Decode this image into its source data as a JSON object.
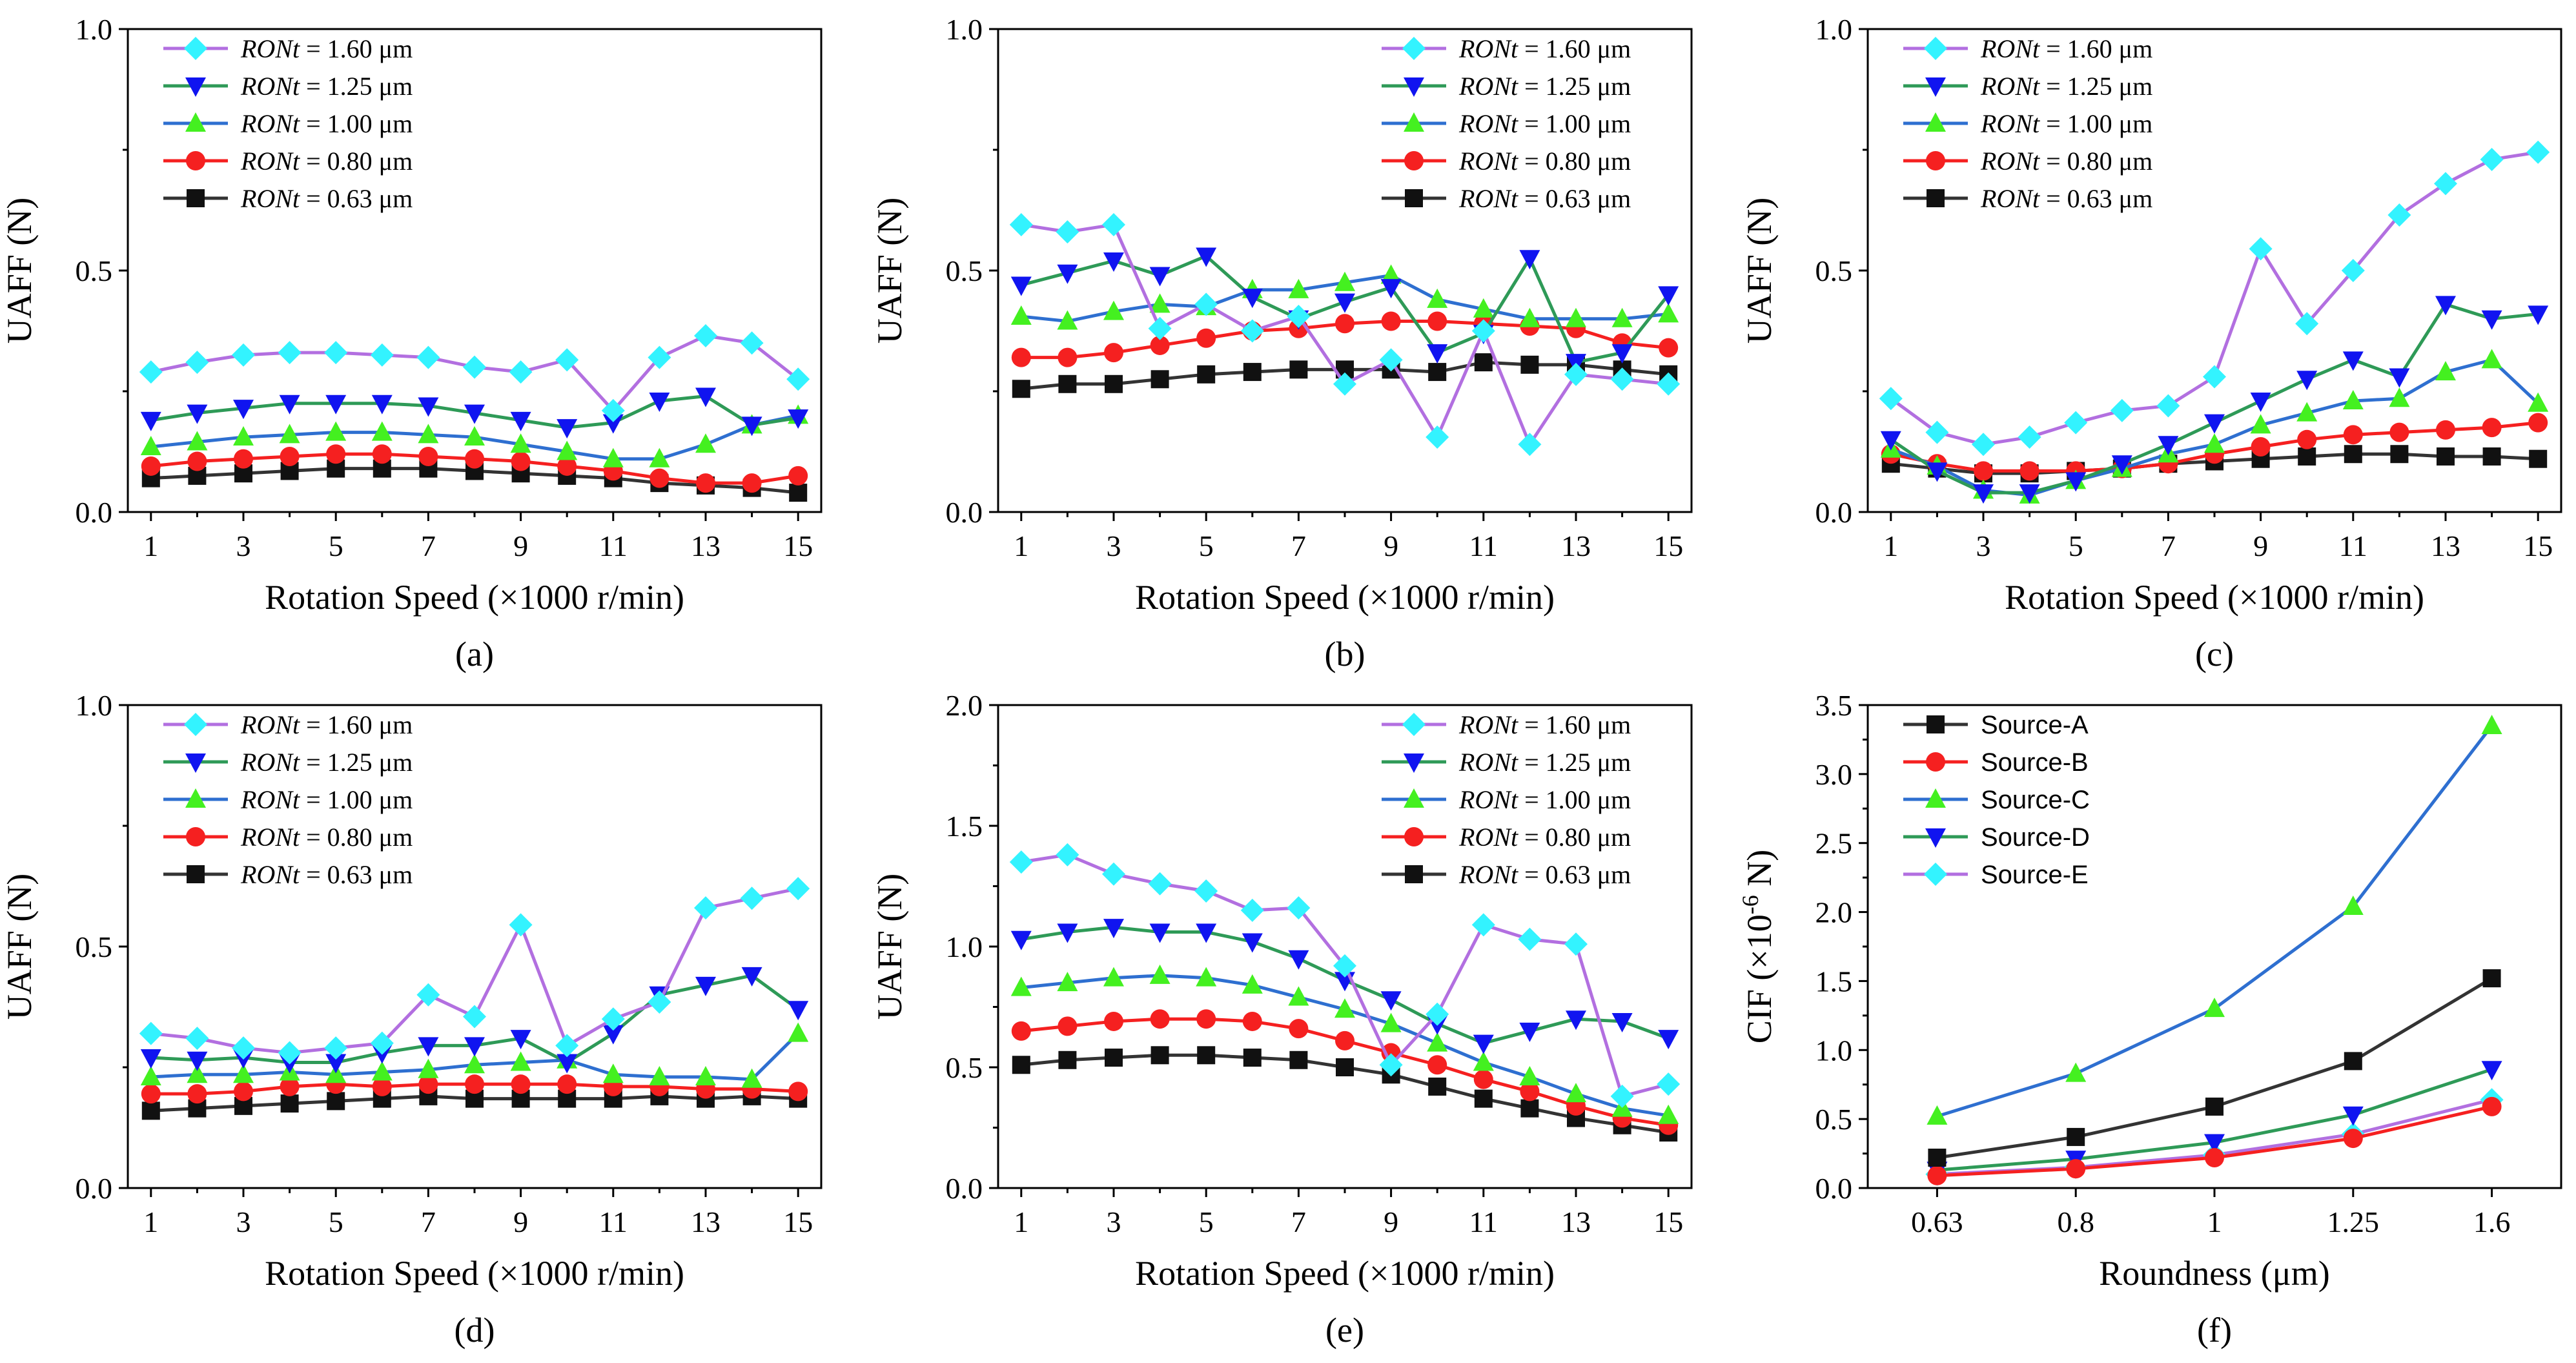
{
  "colors": {
    "1.60": "#B26FE0",
    "1.25": "#2E9A57",
    "1.00": "#2E6FD0",
    "0.80": "#F52020",
    "0.63": "#333333",
    "Source-A": "#333333",
    "Source-B": "#F52020",
    "Source-C": "#2E6FD0",
    "Source-D": "#2E9A57",
    "Source-E": "#B26FE0"
  },
  "marker_colors": {
    "1.60": "#33F3FF",
    "1.25": "#1014F0",
    "1.00": "#44F020",
    "0.80": "#F52020",
    "0.63": "#111111",
    "Source-A": "#111111",
    "Source-B": "#F52020",
    "Source-C": "#44F020",
    "Source-D": "#1014F0",
    "Source-E": "#33F3FF"
  },
  "chart_data": [
    {
      "type": "line",
      "panel_label": "(a)",
      "xlabel": "Rotation Speed (×1000 r/min)",
      "ylabel": "UAFF (N)",
      "x": [
        1,
        2,
        3,
        4,
        5,
        6,
        7,
        8,
        9,
        10,
        11,
        12,
        13,
        14,
        15
      ],
      "xticks": [
        "1",
        "3",
        "5",
        "7",
        "9",
        "11",
        "13",
        "15"
      ],
      "ylim": [
        0,
        1.0
      ],
      "yticks": [
        "0.0",
        "0.5",
        "1.0"
      ],
      "legend_loc": "top-left",
      "series": [
        {
          "key": "1.60",
          "marker": "diamond",
          "legend_prefix": "RONt",
          "legend_suffix": " = 1.60 μm",
          "values": [
            0.29,
            0.31,
            0.325,
            0.33,
            0.33,
            0.325,
            0.32,
            0.3,
            0.29,
            0.315,
            0.21,
            0.32,
            0.365,
            0.35,
            0.275
          ]
        },
        {
          "key": "1.25",
          "marker": "tri-down",
          "legend_prefix": "RONt",
          "legend_suffix": " = 1.25 μm",
          "values": [
            0.19,
            0.205,
            0.215,
            0.225,
            0.225,
            0.225,
            0.22,
            0.205,
            0.19,
            0.175,
            0.185,
            0.23,
            0.24,
            0.18,
            0.195
          ]
        },
        {
          "key": "1.00",
          "marker": "tri-up",
          "legend_prefix": "RONt",
          "legend_suffix": " = 1.00 μm",
          "values": [
            0.135,
            0.145,
            0.155,
            0.16,
            0.165,
            0.165,
            0.16,
            0.155,
            0.14,
            0.125,
            0.11,
            0.11,
            0.14,
            0.18,
            0.2
          ]
        },
        {
          "key": "0.80",
          "marker": "circle",
          "legend_prefix": "RONt",
          "legend_suffix": " = 0.80 μm",
          "values": [
            0.095,
            0.105,
            0.11,
            0.115,
            0.12,
            0.12,
            0.115,
            0.11,
            0.105,
            0.095,
            0.085,
            0.07,
            0.06,
            0.06,
            0.075
          ]
        },
        {
          "key": "0.63",
          "marker": "square",
          "legend_prefix": "RONt",
          "legend_suffix": " = 0.63 μm",
          "values": [
            0.07,
            0.075,
            0.08,
            0.085,
            0.09,
            0.09,
            0.09,
            0.085,
            0.08,
            0.075,
            0.07,
            0.06,
            0.055,
            0.05,
            0.04
          ]
        }
      ]
    },
    {
      "type": "line",
      "panel_label": "(b)",
      "xlabel": "Rotation Speed (×1000 r/min)",
      "ylabel": "UAFF (N)",
      "x": [
        1,
        2,
        3,
        4,
        5,
        6,
        7,
        8,
        9,
        10,
        11,
        12,
        13,
        14,
        15
      ],
      "xticks": [
        "1",
        "3",
        "5",
        "7",
        "9",
        "11",
        "13",
        "15"
      ],
      "ylim": [
        0,
        1.0
      ],
      "yticks": [
        "0.0",
        "0.5",
        "1.0"
      ],
      "legend_loc": "top-right",
      "series": [
        {
          "key": "1.60",
          "marker": "diamond",
          "legend_prefix": "RONt",
          "legend_suffix": " = 1.60 μm",
          "values": [
            0.595,
            0.58,
            0.595,
            0.38,
            0.43,
            0.375,
            0.405,
            0.265,
            0.315,
            0.155,
            0.375,
            0.14,
            0.285,
            0.275,
            0.265
          ]
        },
        {
          "key": "1.25",
          "marker": "tri-down",
          "legend_prefix": "RONt",
          "legend_suffix": " = 1.25 μm",
          "values": [
            0.47,
            0.495,
            0.52,
            0.49,
            0.53,
            0.445,
            0.4,
            0.435,
            0.465,
            0.33,
            0.37,
            0.525,
            0.31,
            0.33,
            0.45
          ]
        },
        {
          "key": "1.00",
          "marker": "tri-up",
          "legend_prefix": "RONt",
          "legend_suffix": " = 1.00 μm",
          "values": [
            0.405,
            0.395,
            0.415,
            0.43,
            0.425,
            0.46,
            0.46,
            0.475,
            0.49,
            0.44,
            0.42,
            0.4,
            0.4,
            0.4,
            0.41
          ]
        },
        {
          "key": "0.80",
          "marker": "circle",
          "legend_prefix": "RONt",
          "legend_suffix": " = 0.80 μm",
          "values": [
            0.32,
            0.32,
            0.33,
            0.345,
            0.36,
            0.375,
            0.38,
            0.39,
            0.395,
            0.395,
            0.39,
            0.385,
            0.38,
            0.35,
            0.34
          ]
        },
        {
          "key": "0.63",
          "marker": "square",
          "legend_prefix": "RONt",
          "legend_suffix": " = 0.63 μm",
          "values": [
            0.255,
            0.265,
            0.265,
            0.275,
            0.285,
            0.29,
            0.295,
            0.295,
            0.295,
            0.29,
            0.31,
            0.305,
            0.305,
            0.295,
            0.285
          ]
        }
      ]
    },
    {
      "type": "line",
      "panel_label": "(c)",
      "xlabel": "Rotation Speed (×1000 r/min)",
      "ylabel": "UAFF (N)",
      "x": [
        1,
        2,
        3,
        4,
        5,
        6,
        7,
        8,
        9,
        10,
        11,
        12,
        13,
        14,
        15
      ],
      "xticks": [
        "1",
        "3",
        "5",
        "7",
        "9",
        "11",
        "13",
        "15"
      ],
      "ylim": [
        0,
        1.0
      ],
      "yticks": [
        "0.0",
        "0.5",
        "1.0"
      ],
      "legend_loc": "top-left",
      "series": [
        {
          "key": "1.60",
          "marker": "diamond",
          "legend_prefix": "RONt",
          "legend_suffix": " = 1.60 μm",
          "values": [
            0.235,
            0.165,
            0.14,
            0.155,
            0.185,
            0.21,
            0.22,
            0.28,
            0.545,
            0.39,
            0.5,
            0.615,
            0.68,
            0.73,
            0.745
          ]
        },
        {
          "key": "1.25",
          "marker": "tri-down",
          "legend_prefix": "RONt",
          "legend_suffix": " = 1.25 μm",
          "values": [
            0.15,
            0.085,
            0.04,
            0.04,
            0.065,
            0.1,
            0.14,
            0.185,
            0.23,
            0.275,
            0.315,
            0.28,
            0.43,
            0.4,
            0.41
          ]
        },
        {
          "key": "1.00",
          "marker": "tri-up",
          "legend_prefix": "RONt",
          "legend_suffix": " = 1.00 μm",
          "values": [
            0.13,
            0.095,
            0.045,
            0.035,
            0.065,
            0.09,
            0.12,
            0.14,
            0.18,
            0.205,
            0.23,
            0.235,
            0.29,
            0.315,
            0.225
          ]
        },
        {
          "key": "0.80",
          "marker": "circle",
          "legend_prefix": "RONt",
          "legend_suffix": " = 0.80 μm",
          "values": [
            0.12,
            0.1,
            0.085,
            0.085,
            0.085,
            0.09,
            0.1,
            0.12,
            0.135,
            0.15,
            0.16,
            0.165,
            0.17,
            0.175,
            0.185
          ]
        },
        {
          "key": "0.63",
          "marker": "square",
          "legend_prefix": "RONt",
          "legend_suffix": " = 0.63 μm",
          "values": [
            0.1,
            0.09,
            0.08,
            0.08,
            0.085,
            0.09,
            0.1,
            0.105,
            0.11,
            0.115,
            0.12,
            0.12,
            0.115,
            0.115,
            0.11
          ]
        }
      ]
    },
    {
      "type": "line",
      "panel_label": "(d)",
      "xlabel": "Rotation Speed (×1000 r/min)",
      "ylabel": "UAFF (N)",
      "x": [
        1,
        2,
        3,
        4,
        5,
        6,
        7,
        8,
        9,
        10,
        11,
        12,
        13,
        14,
        15
      ],
      "xticks": [
        "1",
        "3",
        "5",
        "7",
        "9",
        "11",
        "13",
        "15"
      ],
      "ylim": [
        0,
        1.0
      ],
      "yticks": [
        "0.0",
        "0.5",
        "1.0"
      ],
      "legend_loc": "top-left",
      "series": [
        {
          "key": "1.60",
          "marker": "diamond",
          "legend_prefix": "RONt",
          "legend_suffix": " = 1.60 μm",
          "values": [
            0.32,
            0.31,
            0.29,
            0.28,
            0.29,
            0.3,
            0.4,
            0.355,
            0.545,
            0.295,
            0.35,
            0.385,
            0.58,
            0.6,
            0.62
          ]
        },
        {
          "key": "1.25",
          "marker": "tri-down",
          "legend_prefix": "RONt",
          "legend_suffix": " = 1.25 μm",
          "values": [
            0.27,
            0.265,
            0.27,
            0.26,
            0.26,
            0.28,
            0.295,
            0.295,
            0.31,
            0.26,
            0.32,
            0.4,
            0.42,
            0.44,
            0.37
          ]
        },
        {
          "key": "1.00",
          "marker": "tri-up",
          "legend_prefix": "RONt",
          "legend_suffix": " = 1.00 μm",
          "values": [
            0.23,
            0.235,
            0.235,
            0.24,
            0.235,
            0.24,
            0.245,
            0.255,
            0.26,
            0.265,
            0.235,
            0.23,
            0.23,
            0.225,
            0.32
          ]
        },
        {
          "key": "0.80",
          "marker": "circle",
          "legend_prefix": "RONt",
          "legend_suffix": " = 0.80 μm",
          "values": [
            0.195,
            0.195,
            0.2,
            0.21,
            0.215,
            0.21,
            0.215,
            0.215,
            0.215,
            0.215,
            0.21,
            0.21,
            0.205,
            0.205,
            0.2
          ]
        },
        {
          "key": "0.63",
          "marker": "square",
          "legend_prefix": "RONt",
          "legend_suffix": " = 0.63 μm",
          "values": [
            0.16,
            0.165,
            0.17,
            0.175,
            0.18,
            0.185,
            0.19,
            0.185,
            0.185,
            0.185,
            0.185,
            0.19,
            0.185,
            0.19,
            0.185
          ]
        }
      ]
    },
    {
      "type": "line",
      "panel_label": "(e)",
      "xlabel": "Rotation Speed (×1000 r/min)",
      "ylabel": "UAFF (N)",
      "x": [
        1,
        2,
        3,
        4,
        5,
        6,
        7,
        8,
        9,
        10,
        11,
        12,
        13,
        14,
        15
      ],
      "xticks": [
        "1",
        "3",
        "5",
        "7",
        "9",
        "11",
        "13",
        "15"
      ],
      "ylim": [
        0,
        2.0
      ],
      "yticks": [
        "0.0",
        "0.5",
        "1.0",
        "1.5",
        "2.0"
      ],
      "legend_loc": "top-right",
      "series": [
        {
          "key": "1.60",
          "marker": "diamond",
          "legend_prefix": "RONt",
          "legend_suffix": " = 1.60 μm",
          "values": [
            1.35,
            1.38,
            1.3,
            1.26,
            1.23,
            1.15,
            1.16,
            0.92,
            0.51,
            0.72,
            1.09,
            1.03,
            1.01,
            0.38,
            0.43
          ]
        },
        {
          "key": "1.25",
          "marker": "tri-down",
          "legend_prefix": "RONt",
          "legend_suffix": " = 1.25 μm",
          "values": [
            1.03,
            1.06,
            1.08,
            1.06,
            1.06,
            1.02,
            0.95,
            0.86,
            0.78,
            0.68,
            0.6,
            0.65,
            0.7,
            0.69,
            0.62
          ]
        },
        {
          "key": "1.00",
          "marker": "tri-up",
          "legend_prefix": "RONt",
          "legend_suffix": " = 1.00 μm",
          "values": [
            0.83,
            0.85,
            0.87,
            0.88,
            0.87,
            0.84,
            0.79,
            0.74,
            0.68,
            0.6,
            0.52,
            0.46,
            0.39,
            0.33,
            0.3
          ]
        },
        {
          "key": "0.80",
          "marker": "circle",
          "legend_prefix": "RONt",
          "legend_suffix": " = 0.80 μm",
          "values": [
            0.65,
            0.67,
            0.69,
            0.7,
            0.7,
            0.69,
            0.66,
            0.61,
            0.56,
            0.51,
            0.45,
            0.4,
            0.34,
            0.29,
            0.26
          ]
        },
        {
          "key": "0.63",
          "marker": "square",
          "legend_prefix": "RONt",
          "legend_suffix": " = 0.63 μm",
          "values": [
            0.51,
            0.53,
            0.54,
            0.55,
            0.55,
            0.54,
            0.53,
            0.5,
            0.47,
            0.42,
            0.37,
            0.33,
            0.29,
            0.26,
            0.23
          ]
        }
      ]
    },
    {
      "type": "line",
      "panel_label": "(f)",
      "xlabel": "Roundness (μm)",
      "ylabel_main": "CIF (×10",
      "ylabel_sup": "-6",
      "ylabel_tail": " N)",
      "categories": [
        "0.63",
        "0.8",
        "1",
        "1.25",
        "1.6"
      ],
      "ylim": [
        0,
        3.5
      ],
      "yticks": [
        "0.0",
        "0.5",
        "1.0",
        "1.5",
        "2.0",
        "2.5",
        "3.0",
        "3.5"
      ],
      "legend_loc": "top-left",
      "series": [
        {
          "key": "Source-A",
          "name": "Source-A",
          "marker": "square",
          "values": [
            0.22,
            0.37,
            0.59,
            0.92,
            1.52
          ]
        },
        {
          "key": "Source-B",
          "name": "Source-B",
          "marker": "circle",
          "values": [
            0.09,
            0.14,
            0.22,
            0.36,
            0.59
          ]
        },
        {
          "key": "Source-C",
          "name": "Source-C",
          "marker": "tri-up",
          "values": [
            0.52,
            0.83,
            1.3,
            2.04,
            3.35
          ]
        },
        {
          "key": "Source-D",
          "name": "Source-D",
          "marker": "tri-down",
          "values": [
            0.13,
            0.21,
            0.33,
            0.53,
            0.86
          ]
        },
        {
          "key": "Source-E",
          "name": "Source-E",
          "marker": "diamond",
          "values": [
            0.1,
            0.15,
            0.24,
            0.39,
            0.64
          ]
        }
      ]
    }
  ]
}
